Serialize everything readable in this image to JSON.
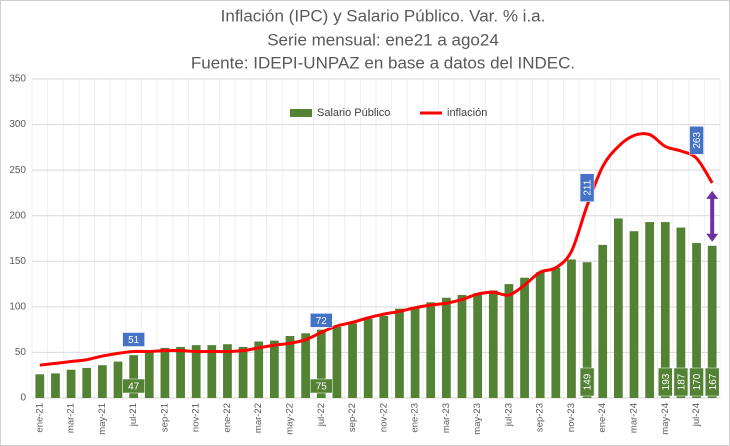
{
  "chart_data": {
    "type": "bar_line",
    "title": [
      "Inflación (IPC) y Salario Público. Var. % i.a.",
      "Serie mensual: ene21 a ago24",
      "Fuente: IDEPI-UNPAZ en base a datos del INDEC."
    ],
    "categories": [
      "ene-21",
      null,
      "mar-21",
      null,
      "may-21",
      null,
      "jul-21",
      null,
      "sep-21",
      null,
      "nov-21",
      null,
      "ene-22",
      null,
      "mar-22",
      null,
      "may-22",
      null,
      "jul-22",
      null,
      "sep-22",
      null,
      "nov-22",
      null,
      "ene-23",
      null,
      "mar-23",
      null,
      "may-23",
      null,
      "jul-23",
      null,
      "sep-23",
      null,
      "nov-23",
      null,
      "ene-24",
      null,
      "mar-24",
      null,
      "may-24",
      null,
      "jul-24",
      null
    ],
    "series": [
      {
        "name": "Salario Público",
        "type": "bar",
        "color": "#548235",
        "values": [
          26,
          27,
          31,
          33,
          36,
          40,
          47,
          52,
          55,
          56,
          58,
          58,
          59,
          56,
          62,
          63,
          68,
          71,
          75,
          78,
          82,
          87,
          90,
          98,
          100,
          105,
          110,
          113,
          115,
          118,
          125,
          132,
          138,
          143,
          152,
          149,
          168,
          197,
          183,
          193,
          193,
          187,
          170,
          167
        ],
        "value_labels": [
          null,
          null,
          null,
          null,
          null,
          null,
          "47",
          null,
          null,
          null,
          null,
          null,
          null,
          null,
          null,
          null,
          null,
          null,
          "75",
          null,
          null,
          null,
          null,
          null,
          null,
          null,
          null,
          null,
          null,
          null,
          null,
          null,
          null,
          null,
          null,
          "149",
          null,
          null,
          null,
          null,
          "193",
          "187",
          "170",
          "167"
        ]
      },
      {
        "name": "inflación",
        "type": "line",
        "color": "#ff0000",
        "values": [
          36,
          38,
          40,
          42,
          46,
          49,
          51,
          51,
          52,
          52,
          51,
          51,
          51,
          52,
          55,
          58,
          60,
          64,
          72,
          79,
          83,
          88,
          92,
          95,
          99,
          102,
          104,
          108,
          114,
          116,
          113,
          124,
          138,
          143,
          161,
          211,
          254,
          276,
          288,
          289,
          276,
          271,
          263,
          236
        ],
        "value_labels": [
          null,
          null,
          null,
          null,
          null,
          null,
          "51",
          null,
          null,
          null,
          null,
          null,
          null,
          null,
          null,
          null,
          null,
          null,
          "72",
          null,
          null,
          null,
          null,
          null,
          null,
          null,
          null,
          null,
          null,
          null,
          null,
          null,
          null,
          null,
          null,
          "211",
          null,
          null,
          null,
          null,
          null,
          null,
          "263",
          null
        ],
        "label_color": "#4472c4"
      }
    ],
    "ylim": [
      0,
      350
    ],
    "yticks": [
      0,
      50,
      100,
      150,
      200,
      250,
      300,
      350
    ],
    "grid": true,
    "legend": "top"
  }
}
